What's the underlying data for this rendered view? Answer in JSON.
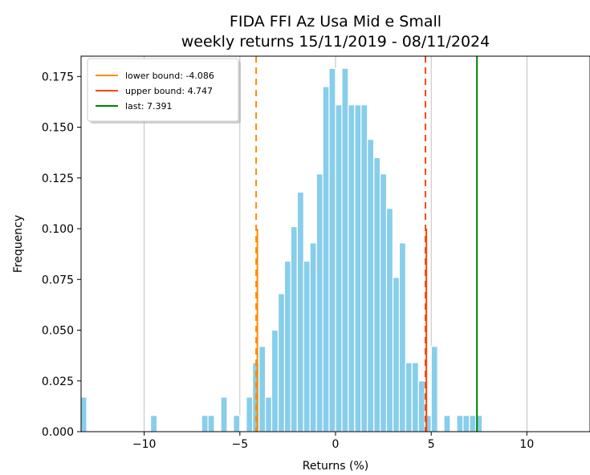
{
  "chart_data": {
    "type": "bar",
    "title_line1": "FIDA FFI Az Usa Mid e Small",
    "title_line2": "weekly returns 15/11/2019 - 08/11/2024",
    "xlabel": "Returns (%)",
    "ylabel": "Frequency",
    "xlim": [
      -13.3,
      13.3
    ],
    "ylim": [
      0,
      0.185
    ],
    "xticks": [
      {
        "value": -10,
        "label": "−10"
      },
      {
        "value": -5,
        "label": "−5"
      },
      {
        "value": 0,
        "label": "0"
      },
      {
        "value": 5,
        "label": "5"
      },
      {
        "value": 10,
        "label": "10"
      }
    ],
    "yticks": [
      {
        "value": 0.0,
        "label": "0.000"
      },
      {
        "value": 0.025,
        "label": "0.025"
      },
      {
        "value": 0.05,
        "label": "0.050"
      },
      {
        "value": 0.075,
        "label": "0.075"
      },
      {
        "value": 0.1,
        "label": "0.100"
      },
      {
        "value": 0.125,
        "label": "0.125"
      },
      {
        "value": 0.15,
        "label": "0.150"
      },
      {
        "value": 0.175,
        "label": "0.175"
      }
    ],
    "grid": "x-only",
    "bar_color": "#87ceeb",
    "bin_width": 0.333,
    "bins": [
      {
        "x": -13.17,
        "height": 0.017
      },
      {
        "x": -9.5,
        "height": 0.008
      },
      {
        "x": -6.83,
        "height": 0.008
      },
      {
        "x": -6.5,
        "height": 0.008
      },
      {
        "x": -5.83,
        "height": 0.017
      },
      {
        "x": -5.17,
        "height": 0.008
      },
      {
        "x": -4.5,
        "height": 0.017
      },
      {
        "x": -4.17,
        "height": 0.034
      },
      {
        "x": -3.83,
        "height": 0.042
      },
      {
        "x": -3.5,
        "height": 0.017
      },
      {
        "x": -3.17,
        "height": 0.05
      },
      {
        "x": -2.83,
        "height": 0.068
      },
      {
        "x": -2.5,
        "height": 0.084
      },
      {
        "x": -2.17,
        "height": 0.101
      },
      {
        "x": -1.83,
        "height": 0.118
      },
      {
        "x": -1.5,
        "height": 0.084
      },
      {
        "x": -1.17,
        "height": 0.093
      },
      {
        "x": -0.83,
        "height": 0.127
      },
      {
        "x": -0.5,
        "height": 0.17
      },
      {
        "x": -0.17,
        "height": 0.179
      },
      {
        "x": 0.17,
        "height": 0.161
      },
      {
        "x": 0.5,
        "height": 0.179
      },
      {
        "x": 0.83,
        "height": 0.161
      },
      {
        "x": 1.17,
        "height": 0.161
      },
      {
        "x": 1.5,
        "height": 0.161
      },
      {
        "x": 1.83,
        "height": 0.144
      },
      {
        "x": 2.17,
        "height": 0.135
      },
      {
        "x": 2.5,
        "height": 0.127
      },
      {
        "x": 2.83,
        "height": 0.11
      },
      {
        "x": 3.17,
        "height": 0.076
      },
      {
        "x": 3.5,
        "height": 0.093
      },
      {
        "x": 3.83,
        "height": 0.034
      },
      {
        "x": 4.17,
        "height": 0.034
      },
      {
        "x": 4.5,
        "height": 0.025
      },
      {
        "x": 4.83,
        "height": 0.008
      },
      {
        "x": 5.17,
        "height": 0.042
      },
      {
        "x": 5.83,
        "height": 0.008
      },
      {
        "x": 6.5,
        "height": 0.008
      },
      {
        "x": 6.83,
        "height": 0.008
      },
      {
        "x": 7.17,
        "height": 0.008
      },
      {
        "x": 7.5,
        "height": 0.008
      }
    ],
    "reference_lines": [
      {
        "name": "lower bound: -4.086",
        "value": -4.086,
        "color": "#ff8c00",
        "style": "solid"
      },
      {
        "name": "upper bound: 4.747",
        "value": 4.747,
        "color": "#ff4500",
        "style": "solid"
      },
      {
        "name": "last: 7.391",
        "value": 7.391,
        "color": "#008000",
        "style": "solid"
      }
    ],
    "dashed_lines": [
      {
        "value": -4.15,
        "color": "#ff8c00"
      },
      {
        "value": 4.7,
        "color": "#ff4500"
      }
    ],
    "legend": {
      "placement": "top-left",
      "entries": [
        {
          "label": "lower bound: -4.086",
          "color": "#ff8c00"
        },
        {
          "label": "upper bound: 4.747",
          "color": "#ff4500"
        },
        {
          "label": "last: 7.391",
          "color": "#008000"
        }
      ]
    }
  }
}
